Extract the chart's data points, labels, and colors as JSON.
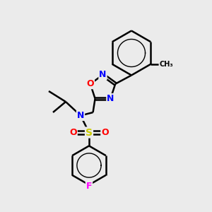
{
  "bg_color": "#ebebeb",
  "atom_colors": {
    "N": "#0000ff",
    "O": "#ff0000",
    "S": "#cccc00",
    "F": "#ff00ff",
    "C": "#000000"
  },
  "bond_color": "#000000",
  "line_width": 1.8,
  "font_size": 9
}
